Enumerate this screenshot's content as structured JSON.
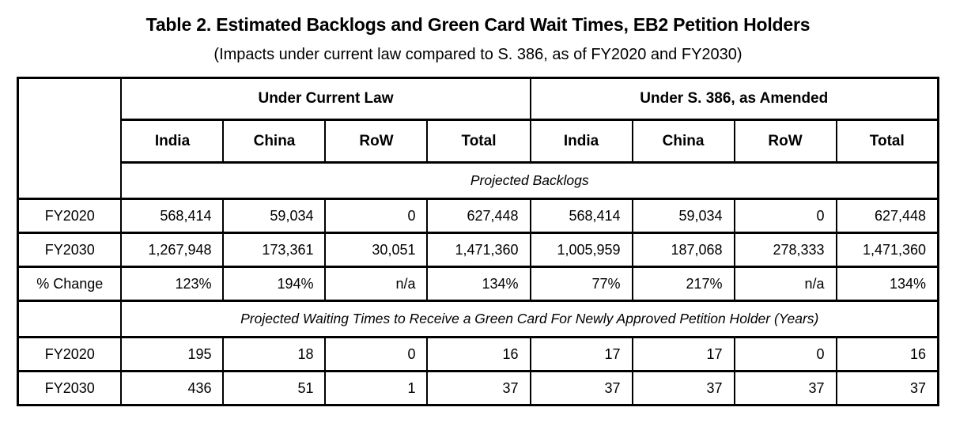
{
  "title": "Table 2. Estimated Backlogs and Green Card Wait Times, EB2 Petition Holders",
  "subtitle": "(Impacts under current law compared to S. 386, as of FY2020 and FY2030)",
  "table": {
    "group_headers": [
      "Under Current Law",
      "Under S. 386, as Amended"
    ],
    "column_headers": [
      "India",
      "China",
      "RoW",
      "Total",
      "India",
      "China",
      "RoW",
      "Total"
    ],
    "sections": [
      {
        "label": "Projected Backlogs",
        "rows": [
          {
            "label": "FY2020",
            "values": [
              "568,414",
              "59,034",
              "0",
              "627,448",
              "568,414",
              "59,034",
              "0",
              "627,448"
            ]
          },
          {
            "label": "FY2030",
            "values": [
              "1,267,948",
              "173,361",
              "30,051",
              "1,471,360",
              "1,005,959",
              "187,068",
              "278,333",
              "1,471,360"
            ]
          },
          {
            "label": "% Change",
            "values": [
              "123%",
              "194%",
              "n/a",
              "134%",
              "77%",
              "217%",
              "n/a",
              "134%"
            ]
          }
        ]
      },
      {
        "label": "Projected Waiting Times to Receive a Green Card For Newly Approved Petition Holder (Years)",
        "rows": [
          {
            "label": "FY2020",
            "values": [
              "195",
              "18",
              "0",
              "16",
              "17",
              "17",
              "0",
              "16"
            ]
          },
          {
            "label": "FY2030",
            "values": [
              "436",
              "51",
              "1",
              "37",
              "37",
              "37",
              "37",
              "37"
            ]
          }
        ]
      }
    ]
  },
  "colors": {
    "text": "#000000",
    "border": "#000000",
    "background": "#ffffff"
  }
}
